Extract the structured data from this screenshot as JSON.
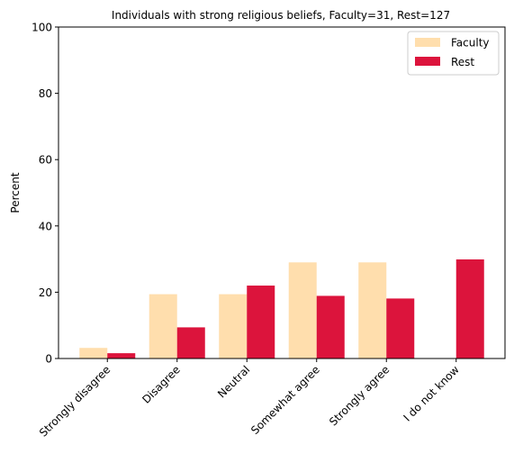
{
  "chart_data": {
    "type": "bar",
    "title": "Individuals with strong religious beliefs, Faculty=31, Rest=127",
    "xlabel": "",
    "ylabel": "Percent",
    "ylim": [
      0,
      100
    ],
    "yticks": [
      0,
      20,
      40,
      60,
      80,
      100
    ],
    "categories": [
      "Strongly disagree",
      "Disagree",
      "Neutral",
      "Somewhat agree",
      "Strongly agree",
      "I do not know"
    ],
    "series": [
      {
        "name": "Faculty",
        "color": "#FFDEAD",
        "values": [
          3.2,
          19.4,
          19.4,
          29.0,
          29.0,
          0.0
        ]
      },
      {
        "name": "Rest",
        "color": "#DC143C",
        "values": [
          1.6,
          9.4,
          22.0,
          18.9,
          18.1,
          29.9
        ]
      }
    ],
    "grid": false,
    "legend": "top-right"
  }
}
